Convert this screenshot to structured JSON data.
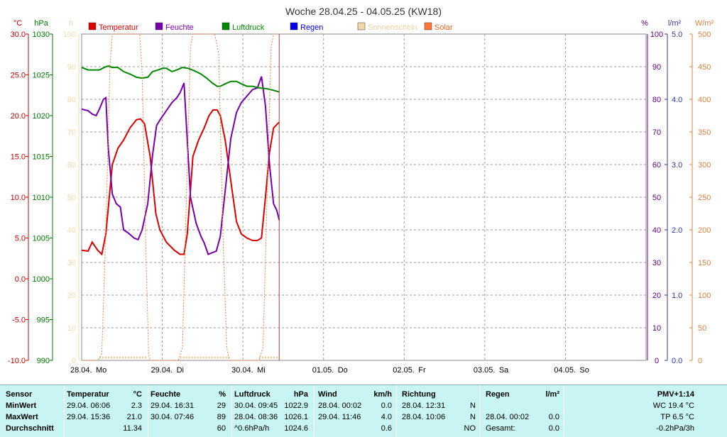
{
  "chart_data": {
    "type": "line",
    "title": "Woche 28.04.25 - 04.05.25 (KW18)",
    "grid": true,
    "x_labels": [
      "28.04.",
      "Mo",
      "29.04.",
      "Di",
      "30.04.",
      "Mi",
      "01.05.",
      "Do",
      "02.05.",
      "Fr",
      "03.05.",
      "Sa",
      "04.05.",
      "So"
    ],
    "axes": {
      "temp": {
        "unit": "°C",
        "ticks": [
          "30.0",
          "25.0",
          "20.0",
          "15.0",
          "10.0",
          "5.0",
          "0.0",
          "-5.0",
          "-10.0"
        ],
        "range": [
          -10,
          30
        ],
        "color": "#cc0000"
      },
      "pressure": {
        "unit": "hPa",
        "ticks": [
          "1030",
          "1025",
          "1020",
          "1015",
          "1010",
          "1005",
          "1000",
          "995",
          "990"
        ],
        "range": [
          990,
          1030
        ],
        "color": "#007700"
      },
      "sunshine": {
        "unit": "h",
        "ticks": [
          "100",
          "90",
          "80",
          "70",
          "60",
          "50",
          "40",
          "30",
          "20",
          "10",
          "0"
        ],
        "range": [
          0,
          100
        ],
        "color": "#f0d8a8"
      },
      "humidity": {
        "unit": "%",
        "ticks": [
          "100",
          "90",
          "80",
          "70",
          "60",
          "50",
          "40",
          "30",
          "20",
          "10",
          "0"
        ],
        "range": [
          0,
          100
        ],
        "color": "#660088"
      },
      "rain": {
        "unit": "l/m²",
        "ticks": [
          "5.0",
          "4.0",
          "3.0",
          "2.0",
          "1.0",
          "0.0"
        ],
        "range": [
          0,
          5
        ],
        "color": "#3333aa"
      },
      "solar": {
        "unit": "W/m²",
        "ticks": [
          "500",
          "450",
          "400",
          "350",
          "300",
          "250",
          "200",
          "150",
          "100",
          "50",
          "0"
        ],
        "range": [
          0,
          500
        ],
        "color": "#e08040"
      }
    },
    "legend": [
      {
        "label": "Temperatur",
        "color": "#dd0000"
      },
      {
        "label": "Feuchte",
        "color": "#7700aa"
      },
      {
        "label": "Luftdruck",
        "color": "#008800"
      },
      {
        "label": "Regen",
        "color": "#0000ee"
      },
      {
        "label": "Sonnenschein",
        "color": "#f0d8a8"
      },
      {
        "label": "Solar",
        "color": "#ff7733"
      }
    ],
    "x_unit": "days since 28.04. 00:00",
    "series": [
      {
        "name": "Temperatur",
        "color": "#dd0000",
        "axis": "temp",
        "points": [
          [
            0,
            3.5
          ],
          [
            0.08,
            3.4
          ],
          [
            0.13,
            4.5
          ],
          [
            0.2,
            3.5
          ],
          [
            0.25,
            3.0
          ],
          [
            0.3,
            5.5
          ],
          [
            0.38,
            14
          ],
          [
            0.45,
            16
          ],
          [
            0.52,
            17
          ],
          [
            0.6,
            18.5
          ],
          [
            0.68,
            19.5
          ],
          [
            0.73,
            19.6
          ],
          [
            0.78,
            19
          ],
          [
            0.85,
            15
          ],
          [
            0.92,
            8
          ],
          [
            0.97,
            6
          ],
          [
            1.05,
            4.5
          ],
          [
            1.15,
            3.5
          ],
          [
            1.22,
            3.0
          ],
          [
            1.27,
            3.0
          ],
          [
            1.31,
            5.5
          ],
          [
            1.38,
            15
          ],
          [
            1.45,
            17
          ],
          [
            1.52,
            18.5
          ],
          [
            1.58,
            20
          ],
          [
            1.63,
            20.7
          ],
          [
            1.68,
            20.7
          ],
          [
            1.72,
            20
          ],
          [
            1.78,
            17
          ],
          [
            1.85,
            12
          ],
          [
            1.92,
            7
          ],
          [
            1.98,
            5.5
          ],
          [
            2.05,
            5
          ],
          [
            2.12,
            4.7
          ],
          [
            2.18,
            4.7
          ],
          [
            2.23,
            5
          ],
          [
            2.28,
            10
          ],
          [
            2.33,
            15.5
          ],
          [
            2.38,
            18.5
          ],
          [
            2.45,
            19.2
          ]
        ]
      },
      {
        "name": "Feuchte",
        "color": "#7700aa",
        "axis": "humidity",
        "points": [
          [
            0,
            77
          ],
          [
            0.08,
            76.5
          ],
          [
            0.13,
            75.5
          ],
          [
            0.18,
            75
          ],
          [
            0.22,
            77
          ],
          [
            0.27,
            80
          ],
          [
            0.3,
            80.5
          ],
          [
            0.33,
            65
          ],
          [
            0.38,
            51
          ],
          [
            0.43,
            48
          ],
          [
            0.48,
            47
          ],
          [
            0.52,
            40
          ],
          [
            0.58,
            39
          ],
          [
            0.65,
            37.5
          ],
          [
            0.7,
            37
          ],
          [
            0.75,
            40
          ],
          [
            0.82,
            48
          ],
          [
            0.88,
            63
          ],
          [
            0.93,
            72
          ],
          [
            0.98,
            74
          ],
          [
            1.05,
            76.5
          ],
          [
            1.12,
            79
          ],
          [
            1.18,
            80.5
          ],
          [
            1.22,
            82
          ],
          [
            1.27,
            85
          ],
          [
            1.3,
            72
          ],
          [
            1.35,
            50
          ],
          [
            1.42,
            42
          ],
          [
            1.48,
            38
          ],
          [
            1.52,
            36
          ],
          [
            1.57,
            32.5
          ],
          [
            1.62,
            33
          ],
          [
            1.67,
            33.5
          ],
          [
            1.72,
            38
          ],
          [
            1.78,
            52
          ],
          [
            1.85,
            68
          ],
          [
            1.92,
            76
          ],
          [
            1.98,
            79
          ],
          [
            2.05,
            81
          ],
          [
            2.12,
            83
          ],
          [
            2.18,
            83.5
          ],
          [
            2.23,
            87
          ],
          [
            2.28,
            78
          ],
          [
            2.33,
            60
          ],
          [
            2.38,
            48
          ],
          [
            2.42,
            46
          ],
          [
            2.45,
            43
          ]
        ]
      },
      {
        "name": "Luftdruck",
        "color": "#008800",
        "axis": "pressure",
        "points": [
          [
            0,
            1025.9
          ],
          [
            0.08,
            1025.6
          ],
          [
            0.15,
            1025.6
          ],
          [
            0.22,
            1025.6
          ],
          [
            0.28,
            1025.9
          ],
          [
            0.33,
            1026.1
          ],
          [
            0.38,
            1025.9
          ],
          [
            0.45,
            1025.9
          ],
          [
            0.52,
            1025.4
          ],
          [
            0.6,
            1025.1
          ],
          [
            0.68,
            1024.7
          ],
          [
            0.75,
            1024.6
          ],
          [
            0.82,
            1024.7
          ],
          [
            0.88,
            1025.4
          ],
          [
            0.95,
            1025.6
          ],
          [
            1.0,
            1025.8
          ],
          [
            1.05,
            1025.8
          ],
          [
            1.12,
            1025.4
          ],
          [
            1.18,
            1025.6
          ],
          [
            1.25,
            1025.9
          ],
          [
            1.32,
            1025.8
          ],
          [
            1.4,
            1025.5
          ],
          [
            1.48,
            1025.1
          ],
          [
            1.55,
            1024.6
          ],
          [
            1.62,
            1024.0
          ],
          [
            1.68,
            1023.6
          ],
          [
            1.72,
            1023.6
          ],
          [
            1.78,
            1023.9
          ],
          [
            1.85,
            1024.2
          ],
          [
            1.92,
            1024.2
          ],
          [
            1.98,
            1023.9
          ],
          [
            2.05,
            1023.6
          ],
          [
            2.12,
            1023.6
          ],
          [
            2.2,
            1023.4
          ],
          [
            2.3,
            1023.3
          ],
          [
            2.38,
            1023.1
          ],
          [
            2.45,
            1022.9
          ]
        ]
      },
      {
        "name": "Solar",
        "color": "#ff7733",
        "axis": "solar",
        "dashed": true,
        "points": [
          [
            0,
            0
          ],
          [
            0.2,
            0
          ],
          [
            0.25,
            10
          ],
          [
            0.3,
            200
          ],
          [
            0.35,
            450
          ],
          [
            0.38,
            500
          ],
          [
            0.55,
            500
          ],
          [
            0.65,
            500
          ],
          [
            0.72,
            500
          ],
          [
            0.75,
            440
          ],
          [
            0.8,
            150
          ],
          [
            0.83,
            10
          ],
          [
            0.85,
            0
          ],
          [
            1.2,
            0
          ],
          [
            1.25,
            20
          ],
          [
            1.3,
            250
          ],
          [
            1.35,
            480
          ],
          [
            1.38,
            500
          ],
          [
            1.65,
            500
          ],
          [
            1.7,
            470
          ],
          [
            1.75,
            200
          ],
          [
            1.8,
            20
          ],
          [
            1.83,
            0
          ],
          [
            2.2,
            0
          ],
          [
            2.25,
            20
          ],
          [
            2.3,
            250
          ],
          [
            2.35,
            480
          ],
          [
            2.38,
            500
          ],
          [
            2.45,
            500
          ]
        ]
      }
    ],
    "sunshine_markers": [
      [
        0.22,
        0.82
      ],
      [
        1.22,
        1.85
      ],
      [
        2.2,
        2.45
      ]
    ],
    "cursor_x": 2.45
  },
  "stats": {
    "pmv": "PMV+1:14",
    "row_labels": [
      "Sensor",
      "MinWert",
      "MaxWert",
      "Durchschnitt"
    ],
    "temperatur": {
      "header": "Temperatur",
      "unit": "°C",
      "min_time": "29.04.  06:06",
      "min_val": "2.3",
      "max_time": "29.04.  15:36",
      "max_val": "21.0",
      "avg": "11.34"
    },
    "feuchte": {
      "header": "Feuchte",
      "unit": "%",
      "min_time": "29.04.  16:31",
      "min_val": "29",
      "max_time": "30.04.  07:46",
      "max_val": "89",
      "avg": "60"
    },
    "luftdruck": {
      "header": "Luftdruck",
      "unit": "hPa",
      "min_time": "30.04.  09:45",
      "min_val": "1022.9",
      "max_time": "28.04.  08:36",
      "max_val": "1026.1",
      "avg_label": "^0.6hPa/h",
      "avg": "1024.6"
    },
    "wind": {
      "header": "Wind",
      "unit": "km/h",
      "min_time": "28.04.  00:02",
      "min_val": "0.0",
      "max_time": "29.04.  11:46",
      "max_val": "4.0",
      "avg": "0.6"
    },
    "richtung": {
      "header": "Richtung",
      "min_time": "28.04.  12:31",
      "min_val": "N",
      "max_time": "28.04.  10:06",
      "max_val": "N",
      "avg": "NO"
    },
    "regen": {
      "header": "Regen",
      "unit": "l/m²",
      "max_time": "28.04.  00:02",
      "max_val": "0.0",
      "avg_label": "Gesamt:",
      "avg": "0.0"
    },
    "extra": {
      "wc": "WC 19.4 °C",
      "tp": "TP 6.5 °C",
      "trend": "-0.2hPa/3h"
    }
  }
}
